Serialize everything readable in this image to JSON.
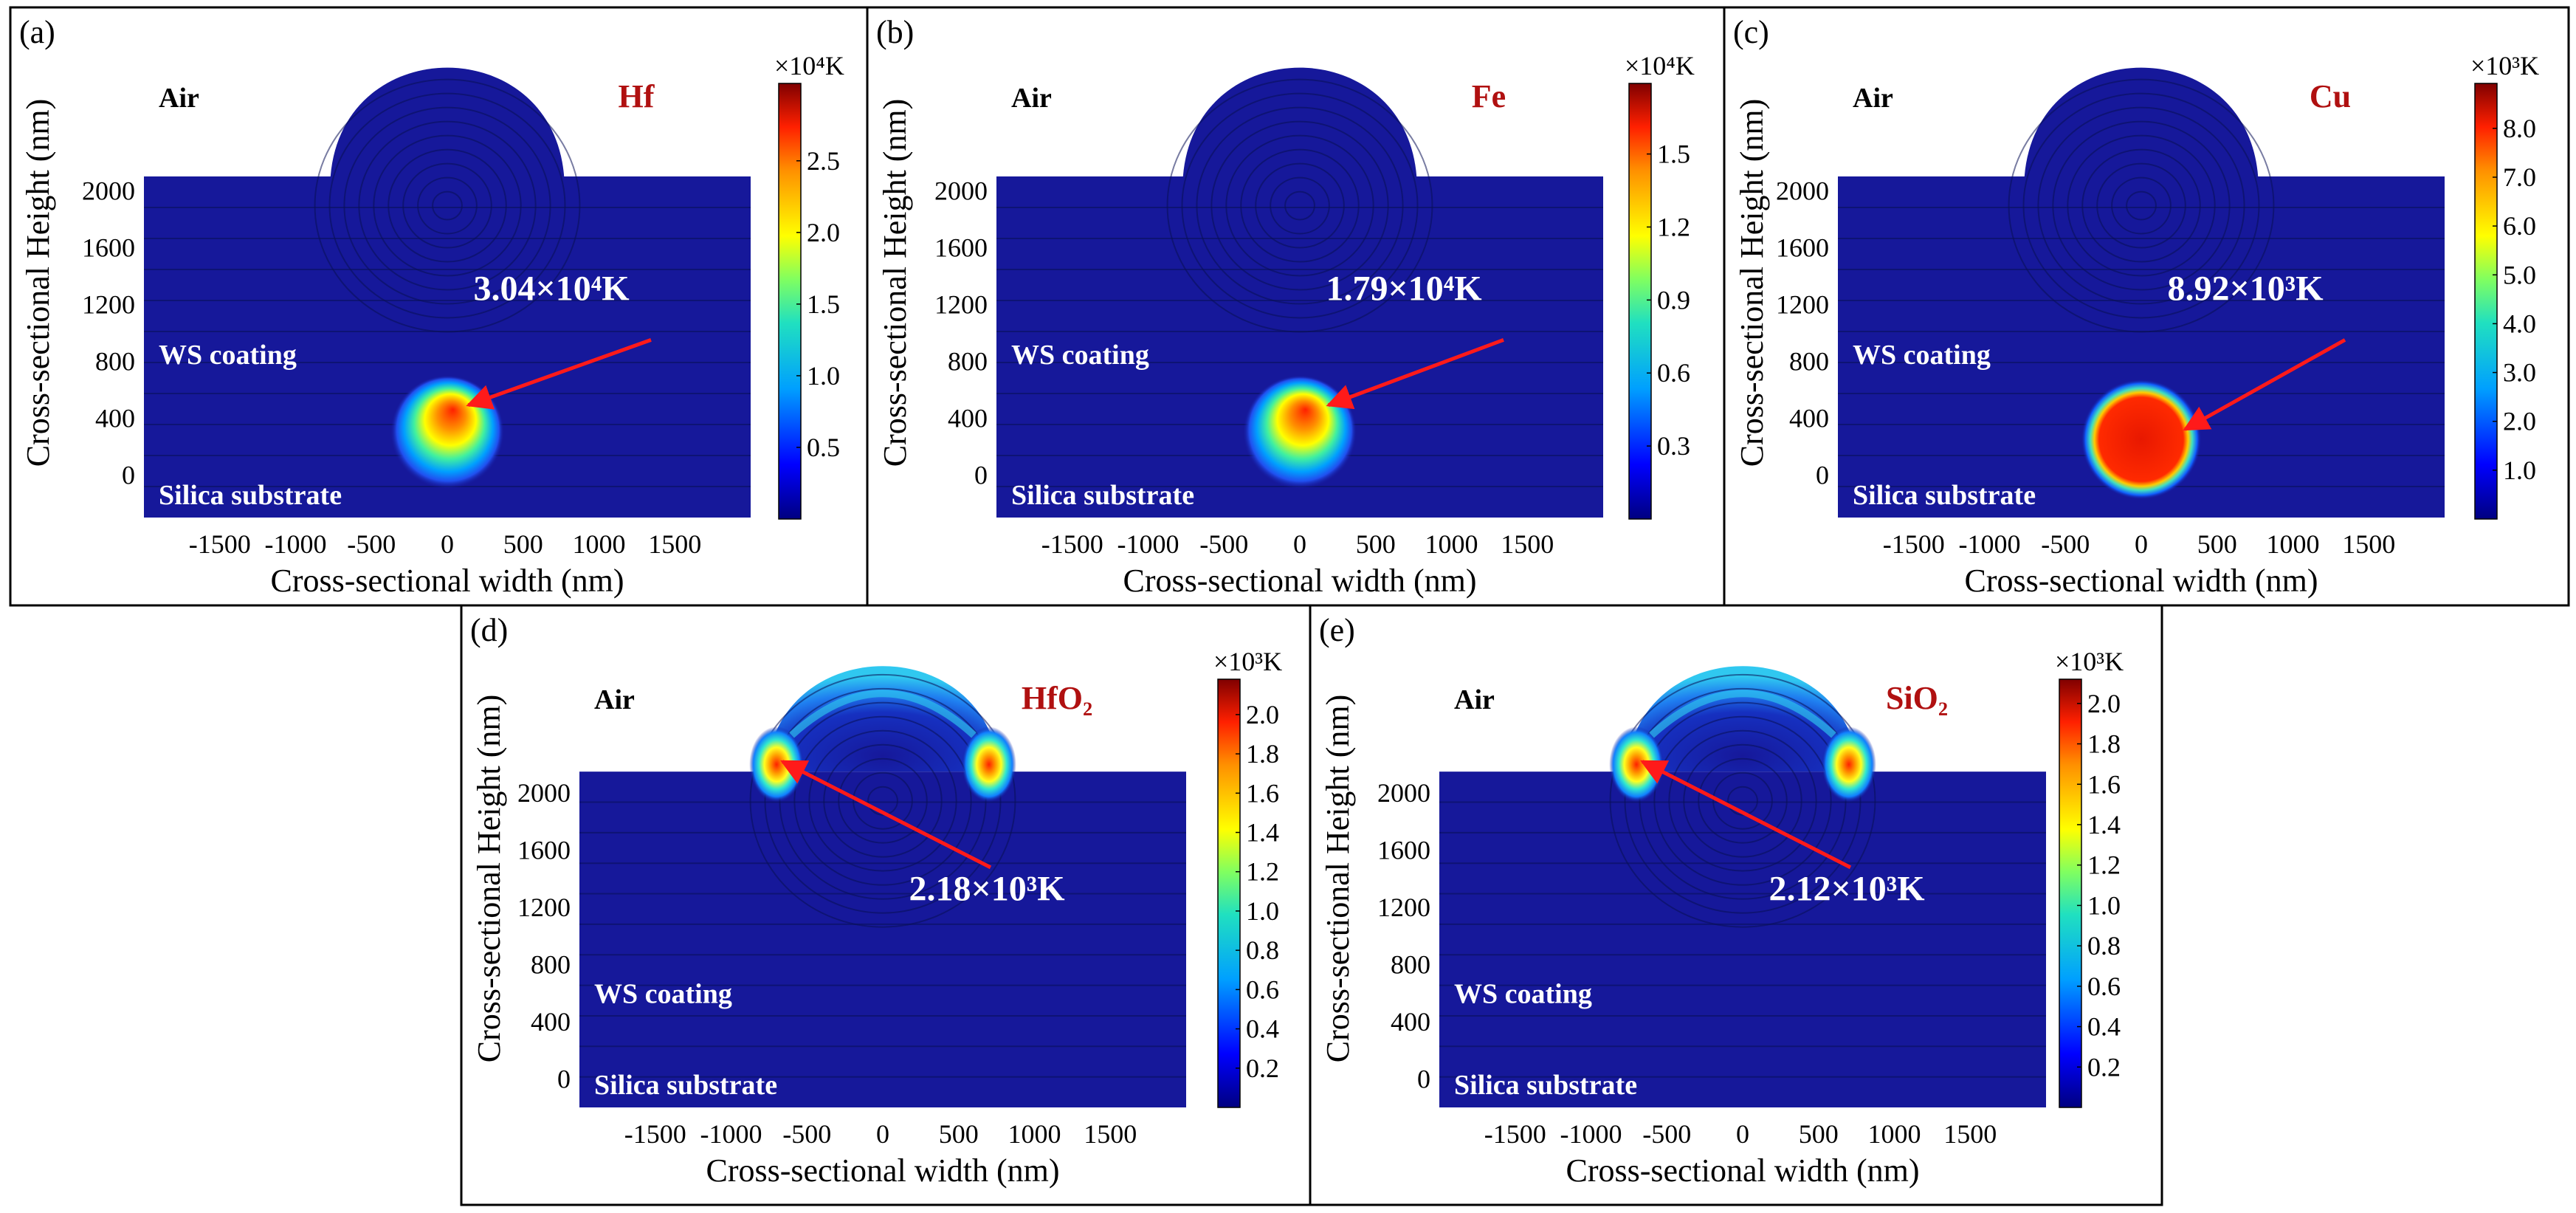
{
  "colors": {
    "background_field": "#16189a",
    "colormap": [
      "#000080",
      "#0000ff",
      "#00a0ff",
      "#20e0c0",
      "#80ff60",
      "#ffff00",
      "#ff9000",
      "#ff2000",
      "#800000"
    ],
    "annotation_arrow": "#ff1a1a",
    "material_label": "#b01010"
  },
  "chart_data": [
    {
      "type": "heatmap",
      "panel": "(a)",
      "material": "Hf",
      "xlabel": "Cross-sectional width (nm)",
      "ylabel": "Cross-sectional Height (nm)",
      "x_ticks": [
        "-1500",
        "-1000",
        "-500",
        "0",
        "500",
        "1000",
        "1500"
      ],
      "y_ticks": [
        "0",
        "400",
        "800",
        "1200",
        "1600",
        "2000"
      ],
      "xlim": [
        -2000,
        2000
      ],
      "ylim": [
        -300,
        2900
      ],
      "colorbar": {
        "unit": "×10⁴K",
        "ticks": [
          "0.5",
          "1.0",
          "1.5",
          "2.0",
          "2.5"
        ],
        "range": [
          0,
          3.04
        ]
      },
      "regions": {
        "air": "Air",
        "coating": "WS coating",
        "substrate": "Silica substrate"
      },
      "coating_top": 2100,
      "dome": {
        "center_x": 0,
        "radius": 770
      },
      "hotspot": {
        "x": 0,
        "y": 300,
        "radius": 300,
        "peak": 3.04,
        "shape": "sphere"
      },
      "annotation": {
        "text": "3.04×10⁴K",
        "point": [
          100,
          470
        ]
      }
    },
    {
      "type": "heatmap",
      "panel": "(b)",
      "material": "Fe",
      "xlabel": "Cross-sectional width (nm)",
      "ylabel": "Cross-sectional Height (nm)",
      "x_ticks": [
        "-1500",
        "-1000",
        "-500",
        "0",
        "500",
        "1000",
        "1500"
      ],
      "y_ticks": [
        "0",
        "400",
        "800",
        "1200",
        "1600",
        "2000"
      ],
      "xlim": [
        -2000,
        2000
      ],
      "ylim": [
        -300,
        2900
      ],
      "colorbar": {
        "unit": "×10⁴K",
        "ticks": [
          "0.3",
          "0.6",
          "0.9",
          "1.2",
          "1.5"
        ],
        "range": [
          0,
          1.79
        ]
      },
      "regions": {
        "air": "Air",
        "coating": "WS coating",
        "substrate": "Silica substrate"
      },
      "coating_top": 2100,
      "dome": {
        "center_x": 0,
        "radius": 770
      },
      "hotspot": {
        "x": 0,
        "y": 300,
        "radius": 300,
        "peak": 1.79,
        "shape": "sphere"
      },
      "annotation": {
        "text": "1.79×10⁴K",
        "point": [
          150,
          470
        ]
      }
    },
    {
      "type": "heatmap",
      "panel": "(c)",
      "material": "Cu",
      "xlabel": "Cross-sectional width (nm)",
      "ylabel": "Cross-sectional Height (nm)",
      "x_ticks": [
        "-1500",
        "-1000",
        "-500",
        "0",
        "500",
        "1000",
        "1500"
      ],
      "y_ticks": [
        "0",
        "400",
        "800",
        "1200",
        "1600",
        "2000"
      ],
      "xlim": [
        -2000,
        2000
      ],
      "ylim": [
        -300,
        2900
      ],
      "colorbar": {
        "unit": "×10³K",
        "ticks": [
          "1.0",
          "2.0",
          "3.0",
          "4.0",
          "5.0",
          "6.0",
          "7.0",
          "8.0"
        ],
        "range": [
          0,
          8.92
        ]
      },
      "regions": {
        "air": "Air",
        "coating": "WS coating",
        "substrate": "Silica substrate"
      },
      "coating_top": 2100,
      "dome": {
        "center_x": 0,
        "radius": 770
      },
      "hotspot": {
        "x": 0,
        "y": 250,
        "radius": 330,
        "peak": 8.92,
        "shape": "uniform"
      },
      "annotation": {
        "text": "8.92×10³K",
        "point": [
          250,
          300
        ]
      }
    },
    {
      "type": "heatmap",
      "panel": "(d)",
      "material": "HfO₂",
      "xlabel": "Cross-sectional width (nm)",
      "ylabel": "Cross-sectional Height (nm)",
      "x_ticks": [
        "-1500",
        "-1000",
        "-500",
        "0",
        "500",
        "1000",
        "1500"
      ],
      "y_ticks": [
        "0",
        "400",
        "800",
        "1200",
        "1600",
        "2000"
      ],
      "xlim": [
        -2000,
        2000
      ],
      "ylim": [
        -200,
        2900
      ],
      "colorbar": {
        "unit": "×10³K",
        "ticks": [
          "0.2",
          "0.4",
          "0.6",
          "0.8",
          "1.0",
          "1.2",
          "1.4",
          "1.6",
          "1.8",
          "2.0"
        ],
        "range": [
          0,
          2.18
        ]
      },
      "regions": {
        "air": "Air",
        "coating": "WS coating",
        "substrate": "Silica substrate"
      },
      "coating_top": 2150,
      "dome": {
        "center_x": 0,
        "radius": 770
      },
      "hotspot": {
        "x": -700,
        "y": 2200,
        "radius": 200,
        "peak": 2.18,
        "shape": "edge"
      },
      "annotation": {
        "text": "2.18×10³K",
        "point": [
          -700,
          2200
        ]
      }
    },
    {
      "type": "heatmap",
      "panel": "(e)",
      "material": "SiO₂",
      "xlabel": "Cross-sectional width (nm)",
      "ylabel": "Cross-sectional Height (nm)",
      "x_ticks": [
        "-1500",
        "-1000",
        "-500",
        "0",
        "500",
        "1000",
        "1500"
      ],
      "y_ticks": [
        "0",
        "400",
        "800",
        "1200",
        "1600",
        "2000"
      ],
      "xlim": [
        -2000,
        2000
      ],
      "ylim": [
        -200,
        2900
      ],
      "colorbar": {
        "unit": "×10³K",
        "ticks": [
          "0.2",
          "0.4",
          "0.6",
          "0.8",
          "1.0",
          "1.2",
          "1.4",
          "1.6",
          "1.8",
          "2.0"
        ],
        "range": [
          0,
          2.12
        ]
      },
      "regions": {
        "air": "Air",
        "coating": "WS coating",
        "substrate": "Silica substrate"
      },
      "coating_top": 2150,
      "dome": {
        "center_x": 0,
        "radius": 770
      },
      "hotspot": {
        "x": -700,
        "y": 2200,
        "radius": 200,
        "peak": 2.12,
        "shape": "edge"
      },
      "annotation": {
        "text": "2.12×10³K",
        "point": [
          -700,
          2200
        ]
      }
    }
  ]
}
